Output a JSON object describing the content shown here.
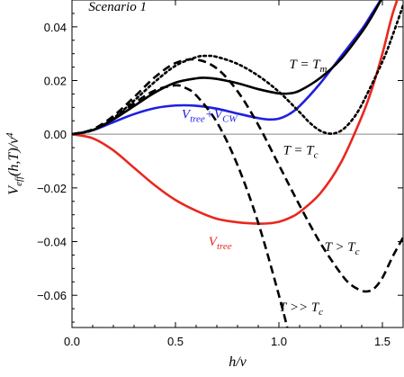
{
  "chart_data": {
    "type": "line",
    "title": "Scenario 1",
    "xlabel": "h/v",
    "ylabel": "V_eff(h,T)/v^4",
    "xlim": [
      0.0,
      1.6
    ],
    "ylim": [
      -0.072,
      0.05
    ],
    "xticks": [
      {
        "value": 0.0,
        "label": "0.0"
      },
      {
        "value": 0.5,
        "label": "0.5"
      },
      {
        "value": 1.0,
        "label": "1.0"
      },
      {
        "value": 1.5,
        "label": "1.5"
      }
    ],
    "yticks": [
      {
        "value": 0.04,
        "label": "0.04"
      },
      {
        "value": 0.02,
        "label": "0.02"
      },
      {
        "value": 0.0,
        "label": "0.00"
      },
      {
        "value": -0.02,
        "label": "-0.02"
      },
      {
        "value": -0.04,
        "label": "-0.04"
      },
      {
        "value": -0.06,
        "label": "-0.06"
      }
    ],
    "grid": false,
    "series": [
      {
        "name": "V_tree",
        "color": "#e8281e",
        "dash": "solid",
        "x": [
          0.0,
          0.1,
          0.2,
          0.3,
          0.4,
          0.5,
          0.6,
          0.7,
          0.8,
          0.9,
          0.95,
          1.0,
          1.05,
          1.1,
          1.2,
          1.3,
          1.4,
          1.45,
          1.5,
          1.55,
          1.6
        ],
        "y": [
          0.0,
          -0.0015,
          -0.006,
          -0.0125,
          -0.019,
          -0.0245,
          -0.0285,
          -0.0315,
          -0.0328,
          -0.0333,
          -0.0332,
          -0.0326,
          -0.0312,
          -0.029,
          -0.022,
          -0.0105,
          0.0065,
          0.017,
          0.03,
          0.045,
          0.056
        ]
      },
      {
        "name": "V_tree + V_CW",
        "color": "#1f1fe0",
        "dash": "solid",
        "x": [
          0.0,
          0.1,
          0.2,
          0.3,
          0.4,
          0.5,
          0.6,
          0.7,
          0.8,
          0.9,
          0.95,
          1.0,
          1.05,
          1.1,
          1.2,
          1.3,
          1.4,
          1.45,
          1.5
        ],
        "y": [
          0.0,
          0.0015,
          0.0045,
          0.0075,
          0.0097,
          0.0107,
          0.0106,
          0.0095,
          0.0077,
          0.006,
          0.0055,
          0.0058,
          0.0075,
          0.0105,
          0.019,
          0.029,
          0.039,
          0.045,
          0.051
        ]
      },
      {
        "name": "T = T_m",
        "color": "#000000",
        "dash": "solid",
        "x": [
          0.0,
          0.1,
          0.2,
          0.3,
          0.4,
          0.5,
          0.6,
          0.65,
          0.7,
          0.8,
          0.9,
          1.0,
          1.05,
          1.1,
          1.2,
          1.3,
          1.4,
          1.45,
          1.5
        ],
        "y": [
          0.0,
          0.0015,
          0.0055,
          0.0105,
          0.0155,
          0.0192,
          0.0208,
          0.021,
          0.0206,
          0.019,
          0.0168,
          0.0152,
          0.0152,
          0.0162,
          0.021,
          0.028,
          0.038,
          0.044,
          0.051
        ]
      },
      {
        "name": "T = T_c",
        "color": "#000000",
        "dash": "dotted",
        "x": [
          0.0,
          0.1,
          0.2,
          0.3,
          0.4,
          0.5,
          0.6,
          0.65,
          0.7,
          0.8,
          0.9,
          1.0,
          1.1,
          1.15,
          1.2,
          1.25,
          1.3,
          1.35,
          1.4,
          1.5,
          1.55,
          1.6
        ],
        "y": [
          0.0,
          0.0015,
          0.006,
          0.0125,
          0.0195,
          0.0255,
          0.0287,
          0.0292,
          0.0288,
          0.0262,
          0.0218,
          0.0158,
          0.0082,
          0.0042,
          0.0013,
          0.0002,
          0.0013,
          0.005,
          0.011,
          0.027,
          0.037,
          0.048
        ]
      },
      {
        "name": "T > T_c",
        "color": "#000000",
        "dash": "dashed",
        "x": [
          0.0,
          0.1,
          0.2,
          0.3,
          0.4,
          0.5,
          0.6,
          0.7,
          0.8,
          0.9,
          1.0,
          1.1,
          1.2,
          1.3,
          1.35,
          1.4,
          1.43,
          1.46,
          1.5,
          1.55,
          1.6
        ],
        "y": [
          0.0,
          0.0018,
          0.0068,
          0.0138,
          0.0212,
          0.0265,
          0.0278,
          0.0245,
          0.016,
          0.0035,
          -0.0115,
          -0.0265,
          -0.0405,
          -0.052,
          -0.0562,
          -0.0583,
          -0.0585,
          -0.0575,
          -0.0535,
          -0.0455,
          -0.0385
        ]
      },
      {
        "name": "T >> T_c",
        "color": "#000000",
        "dash": "dashed",
        "x": [
          0.0,
          0.1,
          0.2,
          0.3,
          0.4,
          0.5,
          0.55,
          0.6,
          0.7,
          0.8,
          0.9,
          1.0,
          1.05
        ],
        "y": [
          0.0,
          0.0016,
          0.0058,
          0.0115,
          0.0163,
          0.0182,
          0.0172,
          0.0145,
          0.0045,
          -0.0115,
          -0.033,
          -0.06,
          -0.075
        ]
      }
    ],
    "annotations": [
      {
        "text": "Scenario 1",
        "color": "#000000",
        "at": [
          0.08,
          0.046
        ]
      },
      {
        "base": "T = T",
        "sub": "m",
        "color": "#000000",
        "at": [
          1.05,
          0.0245
        ]
      },
      {
        "base": "T = T",
        "sub": "c",
        "color": "#000000",
        "at": [
          1.02,
          -0.0075
        ]
      },
      {
        "base": "T > T",
        "sub": "c",
        "color": "#000000",
        "at": [
          1.22,
          -0.0435
        ]
      },
      {
        "base": "T >> T",
        "sub": "c",
        "color": "#000000",
        "at": [
          1.0,
          -0.066
        ]
      },
      {
        "base": "V",
        "sub": "tree",
        "color": "#e8281e",
        "at": [
          0.66,
          -0.0415
        ]
      },
      {
        "base": "V",
        "sub": "tree",
        "mid": "+V",
        "sub2": "CW",
        "color": "#1f1fe0",
        "at": [
          0.53,
          0.006
        ]
      }
    ]
  }
}
